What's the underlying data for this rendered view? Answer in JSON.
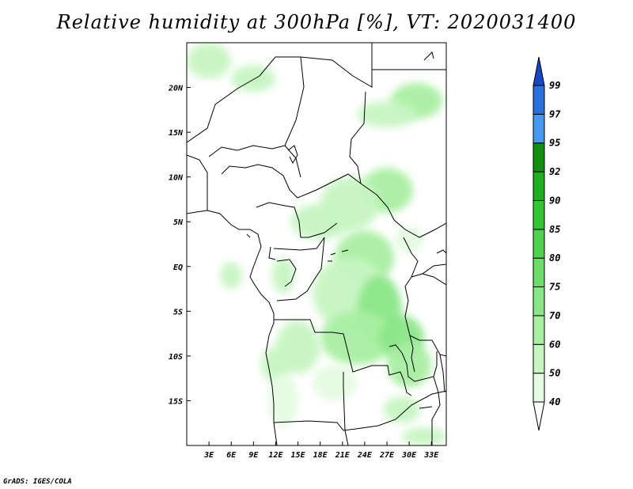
{
  "title": "Relative humidity at 300hPa [%], VT: 2020031400",
  "footer": "GrADS: IGES/COLA",
  "map": {
    "lon_range": [
      0,
      35
    ],
    "lat_range": [
      -20,
      25
    ],
    "lon_ticks": [
      {
        "value": 3,
        "label": "3E"
      },
      {
        "value": 6,
        "label": "6E"
      },
      {
        "value": 9,
        "label": "9E"
      },
      {
        "value": 12,
        "label": "12E"
      },
      {
        "value": 15,
        "label": "15E"
      },
      {
        "value": 18,
        "label": "18E"
      },
      {
        "value": 21,
        "label": "21E"
      },
      {
        "value": 24,
        "label": "24E"
      },
      {
        "value": 27,
        "label": "27E"
      },
      {
        "value": 30,
        "label": "30E"
      },
      {
        "value": 33,
        "label": "33E"
      }
    ],
    "lat_ticks": [
      {
        "value": 20,
        "label": "20N"
      },
      {
        "value": 15,
        "label": "15N"
      },
      {
        "value": 10,
        "label": "10N"
      },
      {
        "value": 5,
        "label": "5N"
      },
      {
        "value": 0,
        "label": "EQ"
      },
      {
        "value": -5,
        "label": "5S"
      },
      {
        "value": -10,
        "label": "10S"
      },
      {
        "value": -15,
        "label": "15S"
      }
    ],
    "humidity_patches": [
      {
        "lon": 3,
        "lat": 23,
        "rx": 3,
        "ry": 2,
        "value": 50
      },
      {
        "lon": 9,
        "lat": 21,
        "rx": 3,
        "ry": 1.5,
        "value": 50
      },
      {
        "lon": 31,
        "lat": 18.5,
        "rx": 3.5,
        "ry": 2,
        "value": 60
      },
      {
        "lon": 27,
        "lat": 17,
        "rx": 4,
        "ry": 1.5,
        "value": 50
      },
      {
        "lon": 27,
        "lat": 8.5,
        "rx": 3.5,
        "ry": 2.5,
        "value": 60
      },
      {
        "lon": 22,
        "lat": 7,
        "rx": 4,
        "ry": 3,
        "value": 50
      },
      {
        "lon": 18,
        "lat": 5,
        "rx": 4,
        "ry": 2,
        "value": 50
      },
      {
        "lon": 24,
        "lat": 1,
        "rx": 4,
        "ry": 3,
        "value": 60
      },
      {
        "lon": 22,
        "lat": -3,
        "rx": 5,
        "ry": 4,
        "value": 50
      },
      {
        "lon": 26,
        "lat": -5,
        "rx": 3,
        "ry": 4,
        "value": 70
      },
      {
        "lon": 23,
        "lat": -8,
        "rx": 5,
        "ry": 3,
        "value": 60
      },
      {
        "lon": 29,
        "lat": -8,
        "rx": 3,
        "ry": 2.5,
        "value": 70
      },
      {
        "lon": 30,
        "lat": -11,
        "rx": 3,
        "ry": 2.5,
        "value": 60
      },
      {
        "lon": 15,
        "lat": -9,
        "rx": 3,
        "ry": 3,
        "value": 50
      },
      {
        "lon": 12,
        "lat": -11,
        "rx": 2,
        "ry": 2,
        "value": 50
      },
      {
        "lon": 13,
        "lat": -15,
        "rx": 2,
        "ry": 3,
        "value": 40
      },
      {
        "lon": 6,
        "lat": -1,
        "rx": 1.5,
        "ry": 1.5,
        "value": 50
      },
      {
        "lon": 13,
        "lat": -1,
        "rx": 1.5,
        "ry": 2,
        "value": 50
      },
      {
        "lon": 29,
        "lat": -16,
        "rx": 2.5,
        "ry": 1.5,
        "value": 50
      },
      {
        "lon": 32,
        "lat": -19,
        "rx": 3,
        "ry": 1,
        "value": 50
      },
      {
        "lon": 20,
        "lat": -13,
        "rx": 3,
        "ry": 2,
        "value": 40
      },
      {
        "lon": 30,
        "lat": 3,
        "rx": 2,
        "ry": 1.5,
        "value": 40
      }
    ]
  },
  "colorbar": {
    "levels": [
      {
        "value": "40",
        "color": "#e5fbe2"
      },
      {
        "value": "50",
        "color": "#c7f5c2"
      },
      {
        "value": "60",
        "color": "#a9efa3"
      },
      {
        "value": "70",
        "color": "#8ce688"
      },
      {
        "value": "75",
        "color": "#6edc6a"
      },
      {
        "value": "80",
        "color": "#50d250"
      },
      {
        "value": "85",
        "color": "#34c434"
      },
      {
        "value": "90",
        "color": "#20ad20"
      },
      {
        "value": "92",
        "color": "#108f10"
      },
      {
        "value": "95",
        "color": "#4898ee"
      },
      {
        "value": "97",
        "color": "#2a70dc"
      },
      {
        "value": "99",
        "color": "#1448c8"
      }
    ]
  }
}
